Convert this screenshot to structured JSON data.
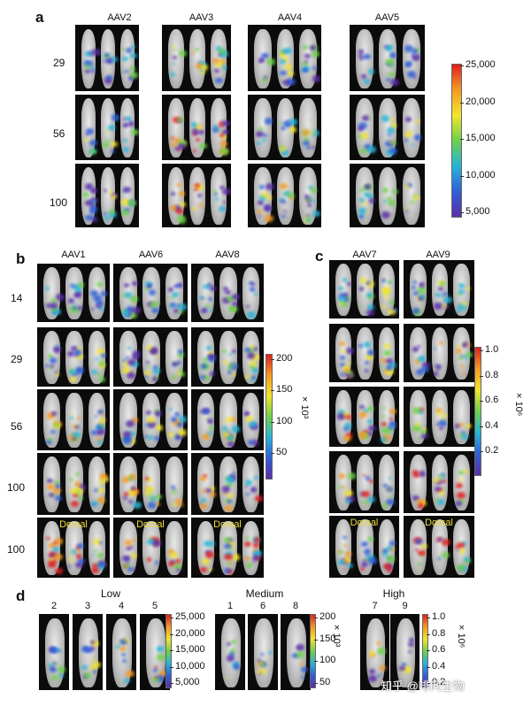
{
  "panels": {
    "a": {
      "label": "a",
      "columns": [
        "AAV2",
        "AAV3",
        "AAV4",
        "AAV5"
      ],
      "rows": [
        "29",
        "56",
        "100"
      ],
      "colorbar": {
        "ticks": [
          "25,000",
          "20,000",
          "15,000",
          "10,000",
          "5,000"
        ]
      }
    },
    "b": {
      "label": "b",
      "columns": [
        "AAV1",
        "AAV6",
        "AAV8"
      ],
      "rows": [
        "14",
        "29",
        "56",
        "100",
        "100"
      ],
      "dorsal": "Dorsal",
      "colorbar": {
        "ticks": [
          "200",
          "150",
          "100",
          "50"
        ],
        "exponent": "× 10³"
      }
    },
    "c": {
      "label": "c",
      "columns": [
        "AAV7",
        "AAV9"
      ],
      "dorsal": "Dorsal",
      "colorbar": {
        "ticks": [
          "1.0",
          "0.8",
          "0.6",
          "0.4",
          "0.2"
        ],
        "exponent": "× 10⁶"
      }
    },
    "d": {
      "label": "d",
      "groups": [
        {
          "title": "Low",
          "cols": [
            "2",
            "3",
            "4",
            "5"
          ],
          "ticks": [
            "25,000",
            "20,000",
            "15,000",
            "10,000",
            "5,000"
          ]
        },
        {
          "title": "Medium",
          "cols": [
            "1",
            "6",
            "8"
          ],
          "ticks": [
            "200",
            "150",
            "100",
            "50"
          ],
          "exponent": "× 10³"
        },
        {
          "title": "High",
          "cols": [
            "7",
            "9"
          ],
          "ticks": [
            "1.0",
            "0.8",
            "0.6",
            "0.4",
            "0.2"
          ],
          "exponent": "× 10⁶"
        }
      ]
    }
  },
  "watermark": "知乎 @啡问生物",
  "colors": {
    "scale": [
      "#5a2fa8",
      "#2f5fd8",
      "#27b4d8",
      "#6dd14a",
      "#f3e42c",
      "#f59a22",
      "#e02020"
    ]
  }
}
